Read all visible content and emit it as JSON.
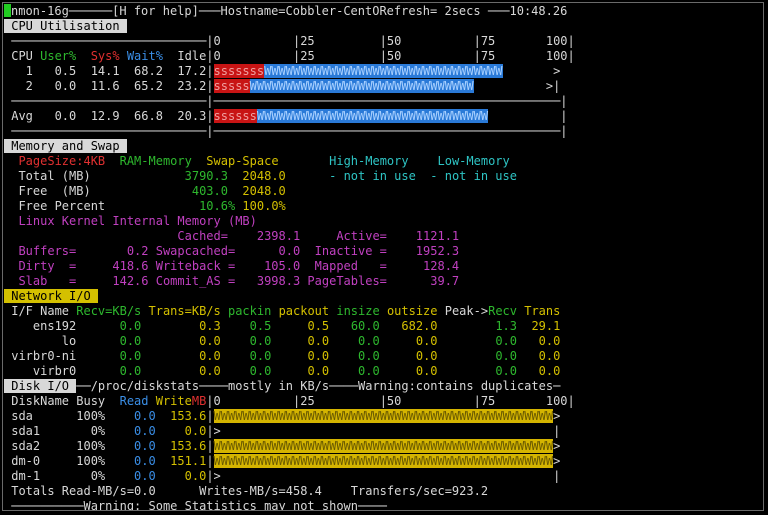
{
  "lines": [
    [
      {
        "t": "nmon-16g──────[H for help]───Hostname=Cobbler-CentORefresh= 2secs ───10:48.26",
        "c": "#d8d8d8"
      }
    ],
    [
      {
        "t": " CPU Utilisation ",
        "c": "#000000",
        "bg": "#d8d8d8"
      }
    ],
    [
      {
        "t": " ───────────────────────────|0          |25         |50          |75       100|",
        "c": "#d8d8d8"
      }
    ],
    [
      {
        "t": " CPU ",
        "c": "#d8d8d8"
      },
      {
        "t": "User%  ",
        "c": "#2eb82e"
      },
      {
        "t": "Sys% ",
        "c": "#e03030"
      },
      {
        "t": "Wait%",
        "c": "#3a8ee6"
      },
      {
        "t": "  Idle|0          |25         |50          |75       100|",
        "c": "#d8d8d8"
      }
    ],
    [
      {
        "t": "   1   0.5  14.1  68.2  17.2|",
        "c": "#d8d8d8"
      },
      {
        "t": "sssssss",
        "c": "#f0a0a0",
        "bg": "#c81414"
      },
      {
        "t": "WWWWWWWWWWWWWWWWWWWWWWWWWWWWWWWWW",
        "c": "#a8d0ff",
        "bg": "#2a7ad8"
      },
      {
        "t": "       >",
        "c": "#d8d8d8"
      }
    ],
    [
      {
        "t": "   2   0.0  11.6  65.2  23.2|",
        "c": "#d8d8d8"
      },
      {
        "t": "sssss",
        "c": "#f0a0a0",
        "bg": "#c81414"
      },
      {
        "t": "WWWWWWWWWWWWWWWWWWWWWWWWWWWWWWW",
        "c": "#a8d0ff",
        "bg": "#2a7ad8"
      },
      {
        "t": "          >|",
        "c": "#d8d8d8"
      }
    ],
    [
      {
        "t": " ───────────────────────────|────────────────────────────────────────────────|",
        "c": "#d8d8d8"
      }
    ],
    [
      {
        "t": " Avg   0.0  12.9  66.8  20.3|",
        "c": "#d8d8d8"
      },
      {
        "t": "ssssss",
        "c": "#f0a0a0",
        "bg": "#c81414"
      },
      {
        "t": "WWWWWWWWWWWWWWWWWWWWWWWWWWWWWWWW",
        "c": "#a8d0ff",
        "bg": "#2a7ad8"
      },
      {
        "t": "          |",
        "c": "#d8d8d8"
      }
    ],
    [
      {
        "t": " ───────────────────────────|────────────────────────────────────────────────|",
        "c": "#d8d8d8"
      }
    ],
    [
      {
        "t": " Memory and Swap ",
        "c": "#000000",
        "bg": "#d8d8d8"
      }
    ],
    [
      {
        "t": "  PageSize:4KB  ",
        "c": "#e03030"
      },
      {
        "t": "RAM-Memory  ",
        "c": "#2eb82e"
      },
      {
        "t": "Swap-Space       ",
        "c": "#d4c000"
      },
      {
        "t": "High-Memory    ",
        "c": "#2ec4c4"
      },
      {
        "t": "Low-Memory",
        "c": "#2ec4c4"
      }
    ],
    [
      {
        "t": "  Total (MB)",
        "c": "#d8d8d8"
      },
      {
        "t": "             3790.3",
        "c": "#2eb82e"
      },
      {
        "t": "  2048.0",
        "c": "#d4c000"
      },
      {
        "t": "      - not in use",
        "c": "#2ec4c4"
      },
      {
        "t": "  - not in use",
        "c": "#2ec4c4"
      }
    ],
    [
      {
        "t": "  Free  (MB)",
        "c": "#d8d8d8"
      },
      {
        "t": "              403.0",
        "c": "#2eb82e"
      },
      {
        "t": "  2048.0",
        "c": "#d4c000"
      }
    ],
    [
      {
        "t": "  Free Percent",
        "c": "#d8d8d8"
      },
      {
        "t": "             10.6%",
        "c": "#2eb82e"
      },
      {
        "t": " 100.0%",
        "c": "#d4c000"
      }
    ],
    [
      {
        "t": "  Linux Kernel Internal Memory (MB)",
        "c": "#c040c0"
      }
    ],
    [
      {
        "t": "                        Cached=    2398.1     Active=    1121.1",
        "c": "#c040c0"
      }
    ],
    [
      {
        "t": "  Buffers=       0.2 Swapcached=      0.0  Inactive =    1952.3",
        "c": "#c040c0"
      }
    ],
    [
      {
        "t": "  Dirty  =     418.6 Writeback =    105.0  Mapped   =     128.4",
        "c": "#c040c0"
      }
    ],
    [
      {
        "t": "  Slab   =     142.6 Commit_AS =   3998.3 PageTables=      39.7",
        "c": "#c040c0"
      }
    ],
    [
      {
        "t": " Network I/O ",
        "c": "#000000",
        "bg": "#d4c000"
      }
    ],
    [
      {
        "t": " I/F Name ",
        "c": "#d8d8d8"
      },
      {
        "t": "Recv=KB/s ",
        "c": "#2eb82e"
      },
      {
        "t": "Trans=KB/s ",
        "c": "#d4c000"
      },
      {
        "t": "packin ",
        "c": "#2eb82e"
      },
      {
        "t": "packout ",
        "c": "#d4c000"
      },
      {
        "t": "insize ",
        "c": "#2eb82e"
      },
      {
        "t": "outsize ",
        "c": "#d4c000"
      },
      {
        "t": "Peak->",
        "c": "#d8d8d8"
      },
      {
        "t": "Recv ",
        "c": "#2eb82e"
      },
      {
        "t": "Trans",
        "c": "#d4c000"
      }
    ],
    [
      {
        "t": "    ens192",
        "c": "#d8d8d8"
      },
      {
        "t": "      0.0",
        "c": "#2eb82e"
      },
      {
        "t": "        0.3",
        "c": "#d4c000"
      },
      {
        "t": "    0.5",
        "c": "#2eb82e"
      },
      {
        "t": "     0.5",
        "c": "#d4c000"
      },
      {
        "t": "   60.0",
        "c": "#2eb82e"
      },
      {
        "t": "   682.0",
        "c": "#d4c000"
      },
      {
        "t": "        1.3",
        "c": "#2eb82e"
      },
      {
        "t": "  29.1",
        "c": "#d4c000"
      }
    ],
    [
      {
        "t": "        lo",
        "c": "#d8d8d8"
      },
      {
        "t": "      0.0",
        "c": "#2eb82e"
      },
      {
        "t": "        0.0",
        "c": "#d4c000"
      },
      {
        "t": "    0.0",
        "c": "#2eb82e"
      },
      {
        "t": "     0.0",
        "c": "#d4c000"
      },
      {
        "t": "    0.0",
        "c": "#2eb82e"
      },
      {
        "t": "     0.0",
        "c": "#d4c000"
      },
      {
        "t": "        0.0",
        "c": "#2eb82e"
      },
      {
        "t": "   0.0",
        "c": "#d4c000"
      }
    ],
    [
      {
        "t": " virbr0-ni",
        "c": "#d8d8d8"
      },
      {
        "t": "      0.0",
        "c": "#2eb82e"
      },
      {
        "t": "        0.0",
        "c": "#d4c000"
      },
      {
        "t": "    0.0",
        "c": "#2eb82e"
      },
      {
        "t": "     0.0",
        "c": "#d4c000"
      },
      {
        "t": "    0.0",
        "c": "#2eb82e"
      },
      {
        "t": "     0.0",
        "c": "#d4c000"
      },
      {
        "t": "        0.0",
        "c": "#2eb82e"
      },
      {
        "t": "   0.0",
        "c": "#d4c000"
      }
    ],
    [
      {
        "t": "    virbr0",
        "c": "#d8d8d8"
      },
      {
        "t": "      0.0",
        "c": "#2eb82e"
      },
      {
        "t": "        0.0",
        "c": "#d4c000"
      },
      {
        "t": "    0.0",
        "c": "#2eb82e"
      },
      {
        "t": "     0.0",
        "c": "#d4c000"
      },
      {
        "t": "    0.0",
        "c": "#2eb82e"
      },
      {
        "t": "     0.0",
        "c": "#d4c000"
      },
      {
        "t": "        0.0",
        "c": "#2eb82e"
      },
      {
        "t": "   0.0",
        "c": "#d4c000"
      }
    ],
    [
      {
        "t": " Disk I/O ",
        "c": "#000000",
        "bg": "#d8d8d8"
      },
      {
        "t": "──/proc/diskstats────mostly in KB/s────Warning:contains duplicates─",
        "c": "#d8d8d8"
      }
    ],
    [
      {
        "t": " DiskName Busy  ",
        "c": "#d8d8d8"
      },
      {
        "t": "Read ",
        "c": "#3a8ee6"
      },
      {
        "t": "Write",
        "c": "#d4c000"
      },
      {
        "t": "MB",
        "c": "#e03030"
      },
      {
        "t": "|0          |25         |50          |75       100|",
        "c": "#d8d8d8"
      }
    ],
    [
      {
        "t": " sda      100%",
        "c": "#d8d8d8"
      },
      {
        "t": "    0.0",
        "c": "#3a8ee6"
      },
      {
        "t": "  153.6",
        "c": "#d4c000"
      },
      {
        "t": "|",
        "c": "#d8d8d8"
      },
      {
        "t": "WWWWWWWWWWWWWWWWWWWWWWWWWWWWWWWWWWWWWWWWWWWWWWW",
        "c": "#6a5a00",
        "bg": "#d4b400"
      },
      {
        "t": ">",
        "c": "#d8d8d8"
      }
    ],
    [
      {
        "t": " sda1       0%",
        "c": "#d8d8d8"
      },
      {
        "t": "    0.0",
        "c": "#3a8ee6"
      },
      {
        "t": "    0.0",
        "c": "#d4c000"
      },
      {
        "t": "|>                                              |",
        "c": "#d8d8d8"
      }
    ],
    [
      {
        "t": " sda2     100%",
        "c": "#d8d8d8"
      },
      {
        "t": "    0.0",
        "c": "#3a8ee6"
      },
      {
        "t": "  153.6",
        "c": "#d4c000"
      },
      {
        "t": "|",
        "c": "#d8d8d8"
      },
      {
        "t": "WWWWWWWWWWWWWWWWWWWWWWWWWWWWWWWWWWWWWWWWWWWWWWW",
        "c": "#6a5a00",
        "bg": "#d4b400"
      },
      {
        "t": ">",
        "c": "#d8d8d8"
      }
    ],
    [
      {
        "t": " dm-0     100%",
        "c": "#d8d8d8"
      },
      {
        "t": "    0.0",
        "c": "#3a8ee6"
      },
      {
        "t": "  151.1",
        "c": "#d4c000"
      },
      {
        "t": "|",
        "c": "#d8d8d8"
      },
      {
        "t": "WWWWWWWWWWWWWWWWWWWWWWWWWWWWWWWWWWWWWWWWWWWWWWW",
        "c": "#6a5a00",
        "bg": "#d4b400"
      },
      {
        "t": ">",
        "c": "#d8d8d8"
      }
    ],
    [
      {
        "t": " dm-1       0%",
        "c": "#d8d8d8"
      },
      {
        "t": "    0.0",
        "c": "#3a8ee6"
      },
      {
        "t": "    0.0",
        "c": "#d4c000"
      },
      {
        "t": "|>                                              |",
        "c": "#d8d8d8"
      }
    ],
    [
      {
        "t": " Totals Read-MB/s=0.0      Writes-MB/s=458.4    Transfers/sec=923.2",
        "c": "#d8d8d8"
      }
    ],
    [
      {
        "t": " ──────────Warning: Some Statistics may not shown────",
        "c": "#d8d8d8"
      }
    ]
  ]
}
